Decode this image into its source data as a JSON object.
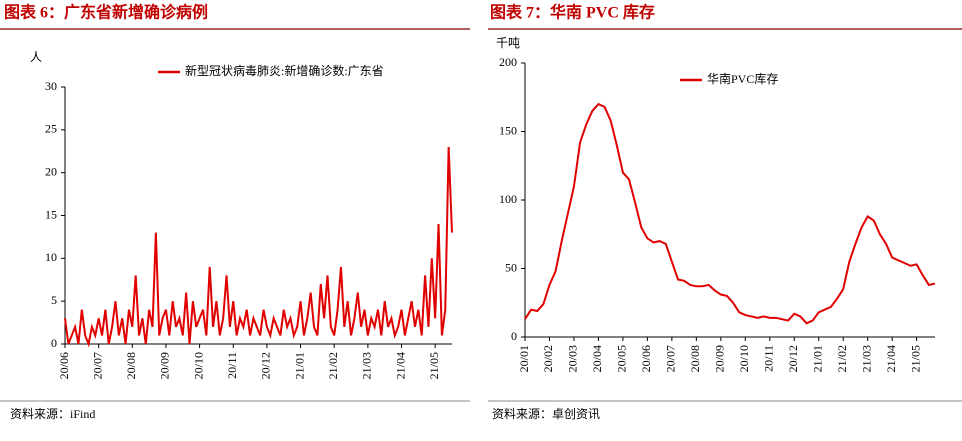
{
  "chart_data": [
    {
      "type": "line",
      "title": "图表 6：广东省新增确诊病例",
      "y_label": "人",
      "source": "资料来源：iFind",
      "categories": [
        "20/06",
        null,
        null,
        null,
        null,
        null,
        null,
        null,
        null,
        null,
        "20/07",
        null,
        null,
        null,
        null,
        null,
        null,
        null,
        null,
        null,
        "20/08",
        null,
        null,
        null,
        null,
        null,
        null,
        null,
        null,
        null,
        "20/09",
        null,
        null,
        null,
        null,
        null,
        null,
        null,
        null,
        null,
        "20/10",
        null,
        null,
        null,
        null,
        null,
        null,
        null,
        null,
        null,
        "20/11",
        null,
        null,
        null,
        null,
        null,
        null,
        null,
        null,
        null,
        "20/12",
        null,
        null,
        null,
        null,
        null,
        null,
        null,
        null,
        null,
        "21/01",
        null,
        null,
        null,
        null,
        null,
        null,
        null,
        null,
        null,
        "21/02",
        null,
        null,
        null,
        null,
        null,
        null,
        null,
        null,
        null,
        "21/03",
        null,
        null,
        null,
        null,
        null,
        null,
        null,
        null,
        null,
        "21/04",
        null,
        null,
        null,
        null,
        null,
        null,
        null,
        null,
        null,
        "21/05",
        null,
        null,
        null,
        null,
        null
      ],
      "series": [
        {
          "name": "新型冠状病毒肺炎:新增确诊数:广东省",
          "color": "#e00000",
          "values": [
            3,
            0,
            1,
            2,
            0,
            4,
            1,
            0,
            2,
            1,
            3,
            1,
            4,
            0,
            2,
            5,
            1,
            3,
            0,
            4,
            2,
            8,
            1,
            3,
            0,
            4,
            2,
            13,
            1,
            3,
            4,
            1,
            5,
            2,
            3,
            1,
            6,
            0,
            5,
            2,
            3,
            4,
            1,
            9,
            2,
            5,
            1,
            3,
            8,
            2,
            5,
            1,
            3,
            2,
            4,
            1,
            3,
            2,
            1,
            4,
            2,
            1,
            3,
            2,
            1,
            4,
            2,
            3,
            1,
            2,
            5,
            1,
            3,
            6,
            2,
            1,
            7,
            3,
            8,
            2,
            1,
            4,
            9,
            2,
            5,
            1,
            3,
            6,
            2,
            4,
            1,
            3,
            2,
            4,
            1,
            5,
            2,
            3,
            1,
            2,
            4,
            1,
            3,
            5,
            2,
            4,
            1,
            8,
            2,
            10,
            3,
            14,
            1,
            4,
            23,
            13
          ]
        }
      ],
      "ylim": [
        0,
        30
      ],
      "yticks": [
        0,
        5,
        10,
        15,
        20,
        25,
        30
      ],
      "legend": "top-right"
    },
    {
      "type": "line",
      "title": "图表 7：华南 PVC 库存",
      "y_label": "千吨",
      "source": "资料来源：卓创资讯",
      "categories": [
        "20/01",
        null,
        null,
        null,
        "20/02",
        null,
        null,
        null,
        "20/03",
        null,
        null,
        null,
        "20/04",
        null,
        null,
        null,
        "20/05",
        null,
        null,
        null,
        "20/06",
        null,
        null,
        null,
        "20/07",
        null,
        null,
        null,
        "20/08",
        null,
        null,
        null,
        "20/09",
        null,
        null,
        null,
        "20/10",
        null,
        null,
        null,
        "20/11",
        null,
        null,
        null,
        "20/12",
        null,
        null,
        null,
        "21/01",
        null,
        null,
        null,
        "21/02",
        null,
        null,
        null,
        "21/03",
        null,
        null,
        null,
        "21/04",
        null,
        null,
        null,
        "21/05",
        null,
        null,
        null
      ],
      "series": [
        {
          "name": "华南PVC库存",
          "color": "#e00000",
          "values": [
            13,
            20,
            19,
            24,
            38,
            48,
            70,
            90,
            110,
            142,
            155,
            165,
            170,
            168,
            158,
            140,
            120,
            115,
            98,
            80,
            72,
            69,
            70,
            68,
            55,
            42,
            41,
            38,
            37,
            37,
            38,
            34,
            31,
            30,
            25,
            18,
            16,
            15,
            14,
            15,
            14,
            14,
            13,
            12,
            17,
            15,
            10,
            12,
            18,
            20,
            22,
            28,
            35,
            55,
            68,
            80,
            88,
            85,
            75,
            68,
            58,
            56,
            54,
            52,
            53,
            45,
            38,
            39
          ]
        }
      ],
      "ylim": [
        0,
        200
      ],
      "yticks": [
        0,
        50,
        100,
        150,
        200
      ],
      "legend": "top-center"
    }
  ]
}
